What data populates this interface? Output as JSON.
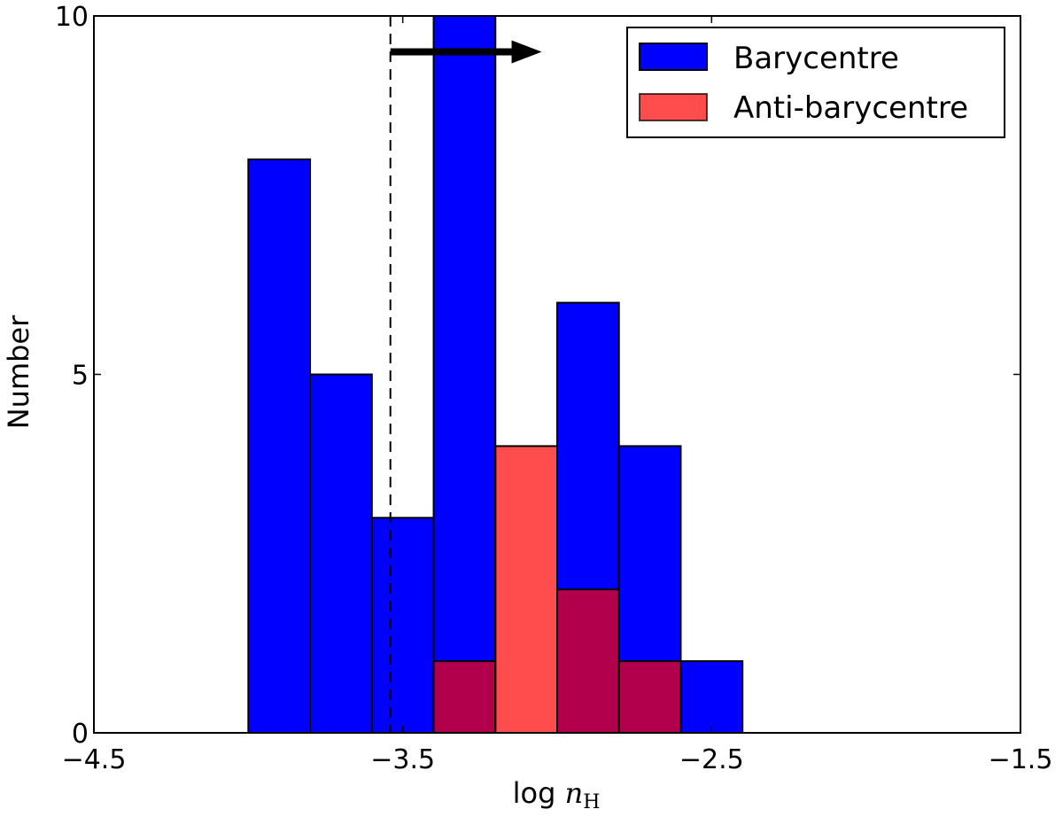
{
  "chart_data": {
    "type": "bar",
    "subtype": "histogram-overlaid",
    "xlabel": {
      "prefix": "log ",
      "math": "n",
      "subscript": "H"
    },
    "ylabel": "Number",
    "xlim": [
      -4.5,
      -1.5
    ],
    "ylim": [
      0,
      10
    ],
    "xticks": [
      -4.5,
      -3.5,
      -2.5,
      -1.5
    ],
    "xtick_labels": [
      "−4.5",
      "−3.5",
      "−2.5",
      "−1.5"
    ],
    "yticks": [
      0,
      5,
      10
    ],
    "ytick_labels": [
      "0",
      "5",
      "10"
    ],
    "grid": false,
    "legend_position": "upper right",
    "series": [
      {
        "name": "Barycentre",
        "color": "#0000ff",
        "bins": [
          {
            "x0": -4.0,
            "x1": -3.8,
            "value": 8
          },
          {
            "x0": -3.8,
            "x1": -3.6,
            "value": 5
          },
          {
            "x0": -3.6,
            "x1": -3.4,
            "value": 3
          },
          {
            "x0": -3.4,
            "x1": -3.2,
            "value": 10
          },
          {
            "x0": -3.0,
            "x1": -2.8,
            "value": 6
          },
          {
            "x0": -2.8,
            "x1": -2.6,
            "value": 4
          },
          {
            "x0": -2.6,
            "x1": -2.4,
            "value": 1
          }
        ]
      },
      {
        "name": "Anti-barycentre",
        "color": "#ff0000",
        "opacity": 0.7,
        "bins": [
          {
            "x0": -3.4,
            "x1": -3.2,
            "value": 1
          },
          {
            "x0": -3.2,
            "x1": -3.0,
            "value": 4
          },
          {
            "x0": -3.0,
            "x1": -2.8,
            "value": 2
          },
          {
            "x0": -2.8,
            "x1": -2.6,
            "value": 1
          }
        ]
      }
    ],
    "annotations": {
      "vline": {
        "x": -3.54,
        "style": "dashed"
      },
      "arrow": {
        "x_start": -3.54,
        "x_end": -3.05,
        "y": 9.5,
        "direction": "right"
      }
    }
  }
}
